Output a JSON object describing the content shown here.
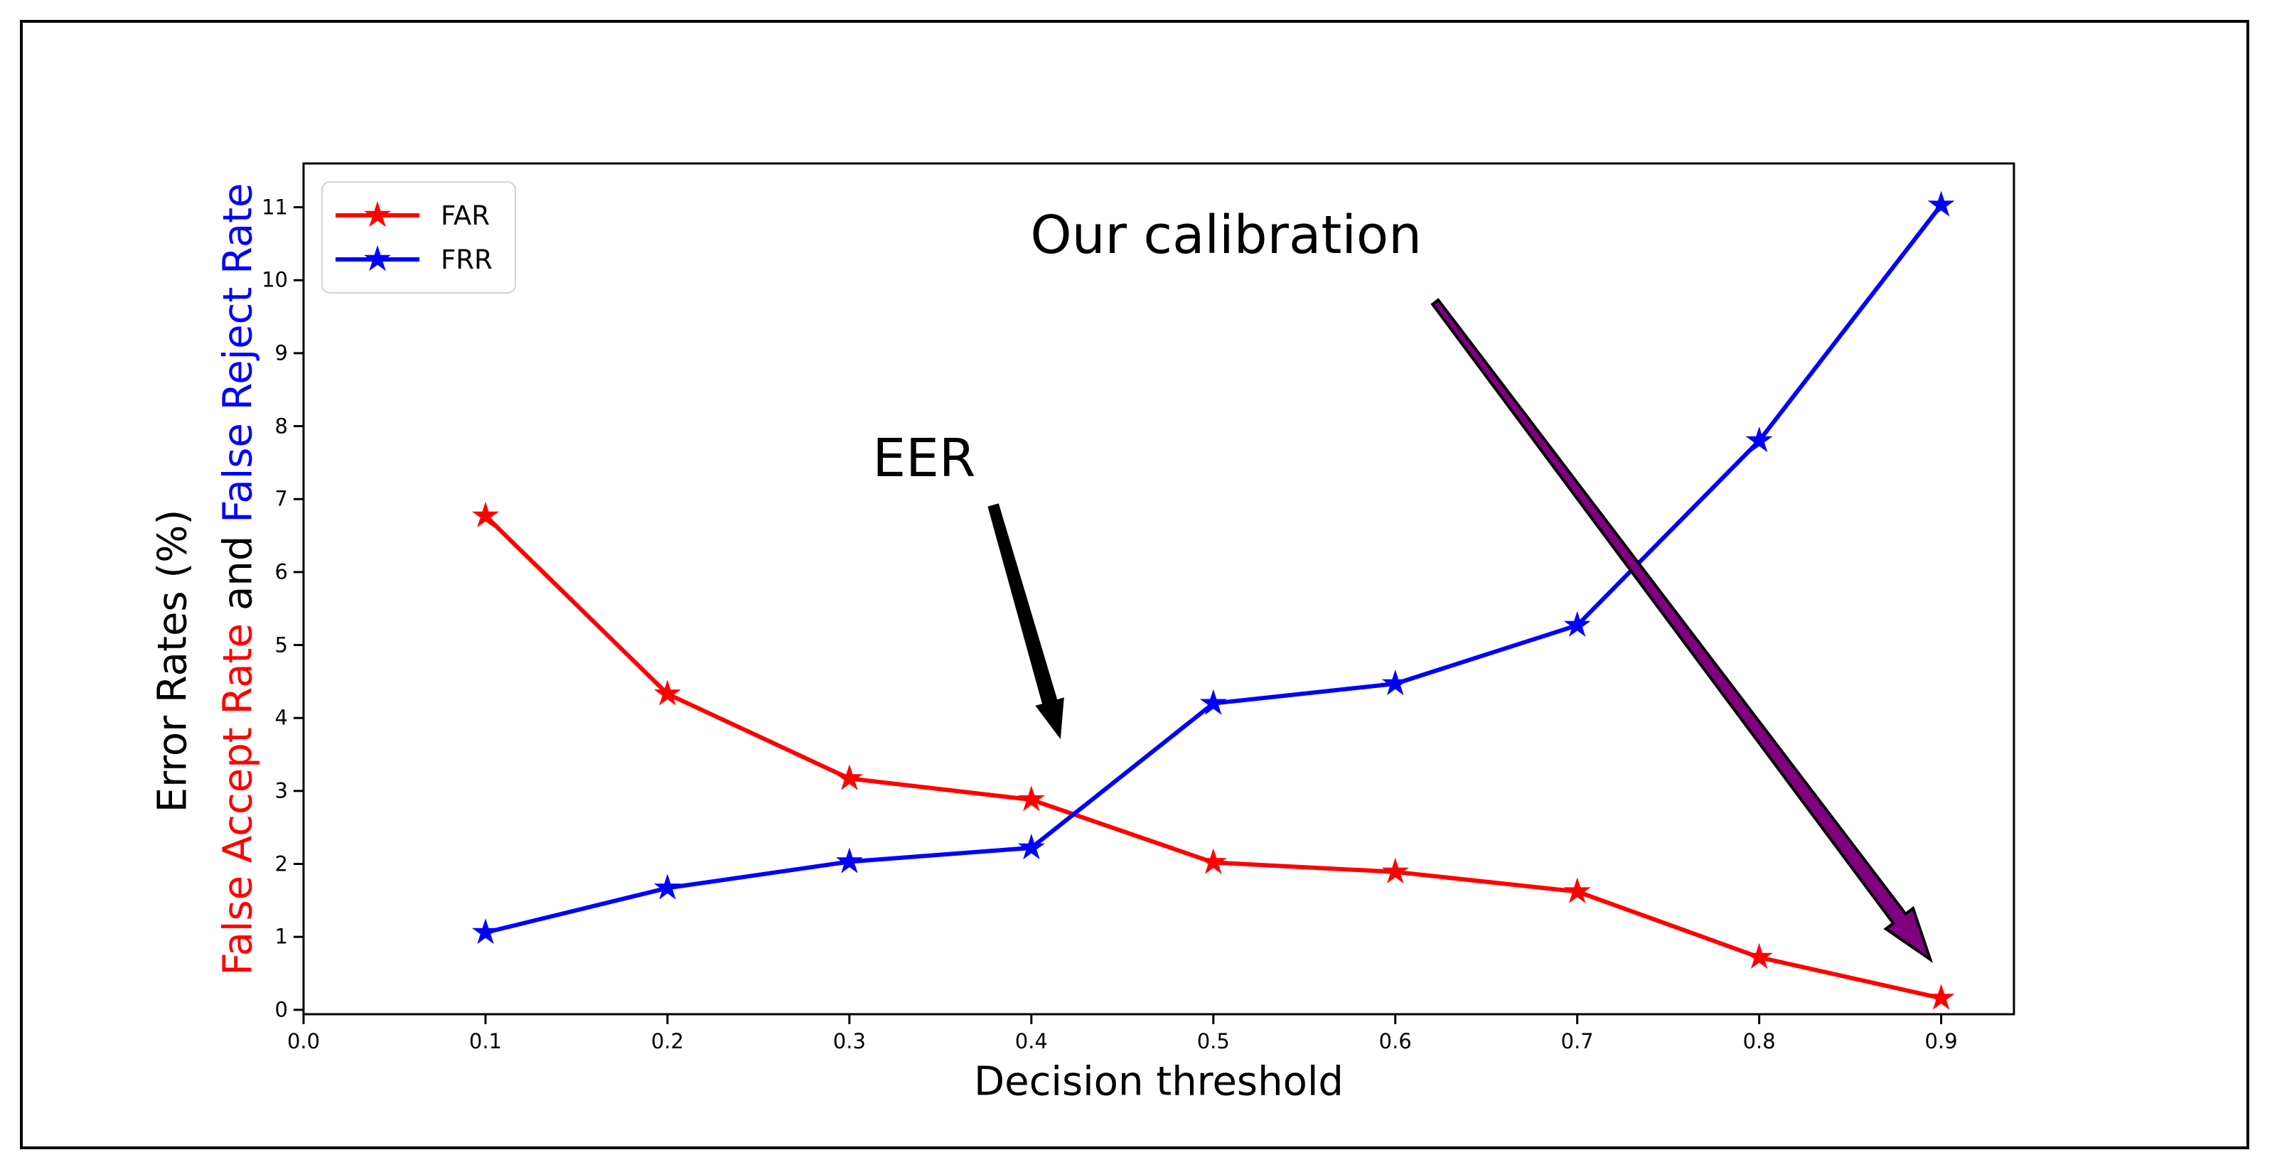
{
  "figure": {
    "background": "#ffffff",
    "border_color": "#000000"
  },
  "chart_data": {
    "type": "line",
    "title": "",
    "xlabel": "Decision threshold",
    "ylabel_primary": "Error Rates (%)",
    "ylabel_secondary": {
      "accept": "False Accept Rate",
      "conj": "and",
      "reject": "False Reject Rate"
    },
    "x": [
      0.1,
      0.2,
      0.3,
      0.4,
      0.5,
      0.6,
      0.7,
      0.8,
      0.9
    ],
    "series": [
      {
        "name": "FAR",
        "color": "#ff0000",
        "marker": "star",
        "values": [
          6.77,
          4.33,
          3.17,
          2.88,
          2.02,
          1.89,
          1.62,
          0.72,
          0.16
        ]
      },
      {
        "name": "FRR",
        "color": "#0000ff",
        "marker": "star",
        "values": [
          1.06,
          1.67,
          2.03,
          2.22,
          4.2,
          4.47,
          5.27,
          7.8,
          11.03
        ]
      }
    ],
    "xlim": [
      0.0,
      0.94
    ],
    "ylim": [
      -0.06,
      11.6
    ],
    "xticks": [
      "0.0",
      "0.1",
      "0.2",
      "0.3",
      "0.4",
      "0.5",
      "0.6",
      "0.7",
      "0.8",
      "0.9"
    ],
    "yticks": [
      "0",
      "1",
      "2",
      "3",
      "4",
      "5",
      "6",
      "7",
      "8",
      "9",
      "10",
      "11"
    ],
    "grid": false,
    "legend_position": "upper left",
    "annotations": [
      {
        "id": "eer",
        "label": "EER",
        "label_x": 0.341,
        "label_y": 7.56,
        "arrow": {
          "x1": 0.379,
          "y1": 6.92,
          "x2": 0.416,
          "y2": 3.71,
          "color": "#000000",
          "edge": "none"
        }
      },
      {
        "id": "calibration",
        "label": "Our calibration",
        "label_x": 0.507,
        "label_y": 10.62,
        "arrow": {
          "x1": 0.622,
          "y1": 9.7,
          "x2": 0.894,
          "y2": 0.69,
          "color": "#800080",
          "edge": "#000000"
        }
      }
    ]
  }
}
